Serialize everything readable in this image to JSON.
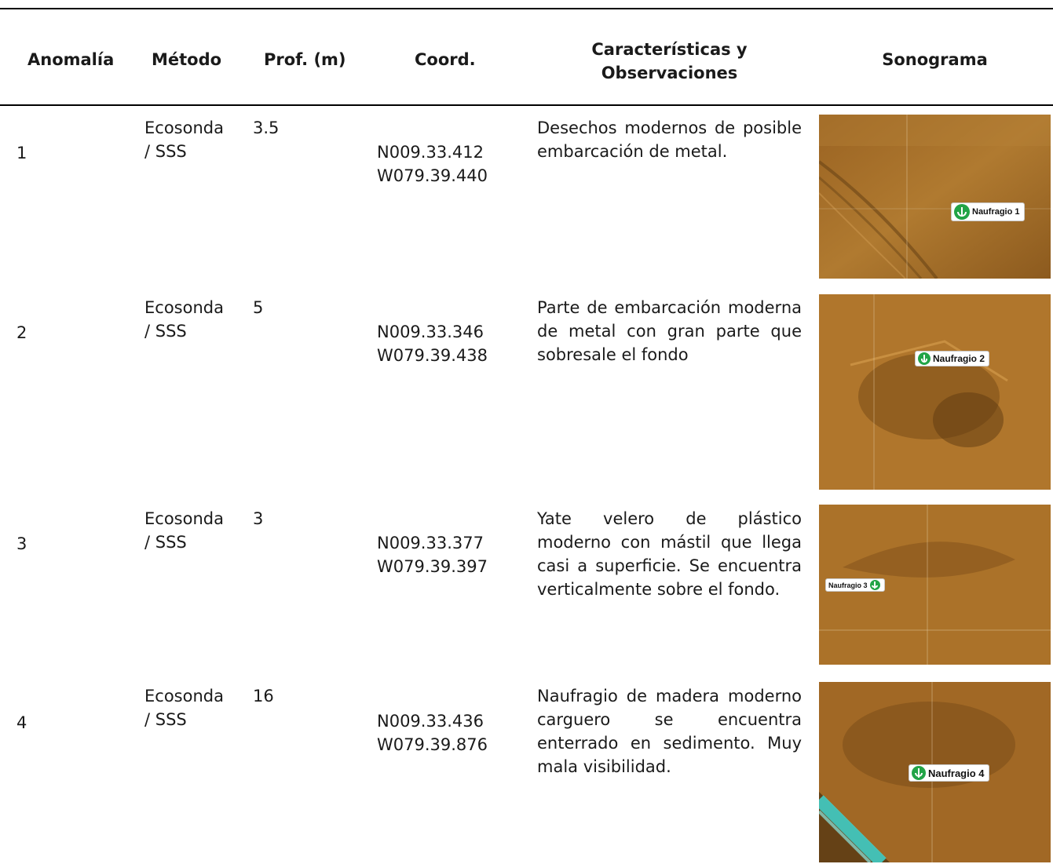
{
  "headers": {
    "anomalia": "Anomalía",
    "metodo": "Método",
    "prof": "Prof. (m)",
    "coord": "Coord.",
    "caracteristicas_l1": "Características y",
    "caracteristicas_l2": "Observaciones",
    "sonograma": "Sonograma"
  },
  "rows": [
    {
      "anomalia": "1",
      "metodo_l1": "Ecosonda",
      "metodo_l2": "/ SSS",
      "prof": "3.5",
      "coord_n": "N009.33.412",
      "coord_w": "W079.39.440",
      "obs": "Desechos modernos de posible embarcación de metal.",
      "sonograma_label": "Naufragio 1"
    },
    {
      "anomalia": "2",
      "metodo_l1": "Ecosonda",
      "metodo_l2": "/ SSS",
      "prof": "5",
      "coord_n": "N009.33.346",
      "coord_w": "W079.39.438",
      "obs": "Parte de embarcación moderna de metal con gran parte que sobresale el fondo",
      "sonograma_label": "Naufragio 2"
    },
    {
      "anomalia": "3",
      "metodo_l1": "Ecosonda",
      "metodo_l2": "/ SSS",
      "prof": "3",
      "coord_n": "N009.33.377",
      "coord_w": "W079.39.397",
      "obs": "Yate velero de plástico moderno con mástil que llega casi a superficie. Se encuentra verticalmente sobre el fondo.",
      "sonograma_label": "Naufragio 3"
    },
    {
      "anomalia": "4",
      "metodo_l1": "Ecosonda",
      "metodo_l2": "/ SSS",
      "prof": "16",
      "coord_n": "N009.33.436",
      "coord_w": "W079.39.876",
      "obs": "Naufragio de madera moderno carguero se encuentra enterrado en sedimento. Muy mala visibilidad.",
      "sonograma_label": "Naufragio 4"
    }
  ],
  "colors": {
    "sonar_base": "#a8702a",
    "sonar_dark": "#6b4515",
    "label_icon": "#22a447",
    "shore_cyan": "#3fd6d0"
  }
}
